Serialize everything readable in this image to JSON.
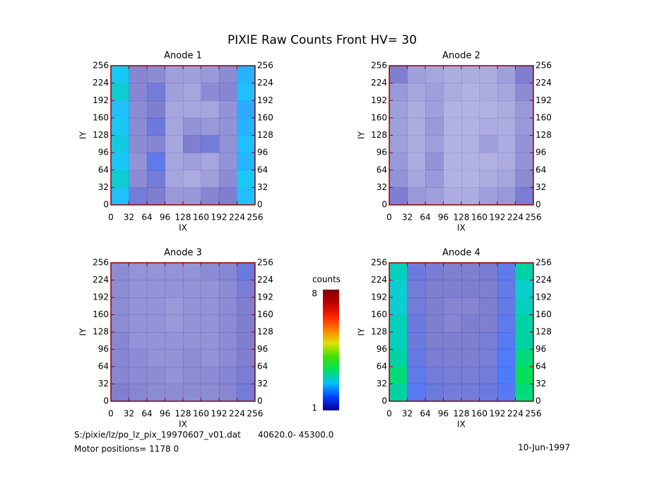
{
  "title": "PIXIE Raw Counts Front HV= 30",
  "footer": {
    "file": "S:/pixie/lz/po_lz_pix_19970607_v01.dat",
    "range": "40620.0- 45300.0",
    "motor": "Motor positions= 1178 0",
    "date": "10-Jun-1997"
  },
  "colorbar": {
    "label": "counts",
    "lim": [
      1,
      8
    ],
    "ticks": [
      1,
      8
    ],
    "colors": [
      "#0000a0",
      "#0040ff",
      "#00c0ff",
      "#00e060",
      "#40e000",
      "#e0e000",
      "#ff8000",
      "#ff2000",
      "#c00000",
      "#800000"
    ]
  },
  "frame_color": "#8b0000",
  "chart_data": [
    {
      "type": "heatmap",
      "title": "Anode 1",
      "xlabel": "IX",
      "ylabel": "IY",
      "xlim": [
        0,
        256
      ],
      "ylim": [
        0,
        256
      ],
      "xticks": [
        0,
        32,
        64,
        96,
        128,
        160,
        192,
        224,
        256
      ],
      "yticks": [
        0,
        32,
        64,
        96,
        128,
        160,
        192,
        224,
        256
      ],
      "z": [
        [
          2.5,
          1.2,
          1.0,
          0.6,
          0.6,
          0.9,
          1.0,
          2.5
        ],
        [
          2.8,
          0.8,
          1.2,
          0.4,
          0.3,
          0.5,
          0.8,
          2.6
        ],
        [
          2.6,
          0.7,
          1.5,
          0.4,
          0.5,
          0.4,
          0.7,
          2.4
        ],
        [
          2.7,
          0.8,
          0.9,
          0.4,
          1.0,
          1.2,
          0.7,
          2.5
        ],
        [
          2.6,
          0.8,
          1.3,
          0.4,
          0.7,
          0.6,
          0.7,
          2.4
        ],
        [
          2.5,
          0.8,
          1.0,
          0.4,
          0.4,
          0.4,
          0.7,
          2.3
        ],
        [
          2.8,
          0.9,
          1.2,
          0.5,
          0.4,
          0.8,
          0.9,
          2.5
        ],
        [
          2.6,
          0.9,
          0.8,
          0.5,
          0.5,
          0.6,
          0.8,
          2.4
        ]
      ]
    },
    {
      "type": "heatmap",
      "title": "Anode 2",
      "xlabel": "IX",
      "ylabel": "IY",
      "xlim": [
        0,
        256
      ],
      "ylim": [
        0,
        256
      ],
      "xticks": [
        0,
        32,
        64,
        96,
        128,
        160,
        192,
        224,
        256
      ],
      "yticks": [
        0,
        32,
        64,
        96,
        128,
        160,
        192,
        224,
        256
      ],
      "z": [
        [
          1.0,
          0.6,
          0.5,
          0.3,
          0.3,
          0.5,
          0.6,
          1.1
        ],
        [
          0.7,
          0.4,
          0.6,
          0.2,
          0.2,
          0.3,
          0.4,
          0.8
        ],
        [
          0.6,
          0.3,
          0.7,
          0.2,
          0.2,
          0.2,
          0.3,
          0.7
        ],
        [
          0.5,
          0.3,
          0.5,
          0.2,
          0.2,
          0.5,
          0.3,
          0.7
        ],
        [
          0.5,
          0.3,
          0.6,
          0.2,
          0.2,
          0.3,
          0.3,
          0.6
        ],
        [
          0.5,
          0.3,
          0.5,
          0.2,
          0.2,
          0.2,
          0.3,
          0.6
        ],
        [
          0.6,
          0.4,
          0.5,
          0.3,
          0.2,
          0.3,
          0.4,
          0.8
        ],
        [
          1.0,
          0.5,
          0.4,
          0.3,
          0.3,
          0.3,
          0.5,
          1.0
        ]
      ]
    },
    {
      "type": "heatmap",
      "title": "Anode 3",
      "xlabel": "IX",
      "ylabel": "IY",
      "xlim": [
        0,
        256
      ],
      "ylim": [
        0,
        256
      ],
      "xticks": [
        0,
        32,
        64,
        96,
        128,
        160,
        192,
        224,
        256
      ],
      "yticks": [
        0,
        32,
        64,
        96,
        128,
        160,
        192,
        224,
        256
      ],
      "z": [
        [
          1.0,
          0.9,
          0.8,
          0.8,
          0.8,
          0.8,
          0.9,
          1.2
        ],
        [
          0.9,
          0.8,
          0.8,
          0.7,
          0.8,
          0.8,
          0.9,
          1.1
        ],
        [
          0.9,
          0.8,
          0.7,
          0.7,
          0.8,
          0.7,
          0.8,
          1.0
        ],
        [
          0.9,
          0.7,
          0.7,
          0.7,
          0.7,
          0.7,
          0.8,
          1.0
        ],
        [
          0.8,
          0.7,
          0.7,
          0.6,
          0.7,
          0.7,
          0.8,
          1.0
        ],
        [
          0.8,
          0.7,
          0.7,
          0.6,
          0.7,
          0.7,
          0.8,
          1.0
        ],
        [
          0.8,
          0.7,
          0.7,
          0.7,
          0.7,
          0.7,
          0.8,
          1.1
        ],
        [
          0.8,
          0.7,
          0.7,
          0.7,
          0.7,
          0.8,
          0.9,
          1.3
        ]
      ]
    },
    {
      "type": "heatmap",
      "title": "Anode 4",
      "xlabel": "IX",
      "ylabel": "IY",
      "xlim": [
        0,
        256
      ],
      "ylim": [
        0,
        256
      ],
      "xticks": [
        0,
        32,
        64,
        96,
        128,
        160,
        192,
        224,
        256
      ],
      "yticks": [
        0,
        32,
        64,
        96,
        128,
        160,
        192,
        224,
        256
      ],
      "z": [
        [
          3.0,
          1.6,
          1.3,
          1.2,
          1.2,
          1.3,
          1.6,
          3.2
        ],
        [
          3.2,
          1.5,
          1.2,
          1.1,
          1.1,
          1.2,
          1.8,
          3.4
        ],
        [
          3.0,
          1.4,
          1.1,
          1.0,
          1.0,
          1.1,
          1.7,
          3.2
        ],
        [
          2.9,
          1.3,
          1.0,
          1.0,
          1.0,
          1.1,
          1.6,
          3.0
        ],
        [
          2.9,
          1.3,
          1.0,
          0.9,
          1.0,
          1.0,
          1.5,
          3.0
        ],
        [
          2.8,
          1.2,
          1.0,
          0.9,
          0.9,
          1.0,
          1.4,
          2.9
        ],
        [
          2.8,
          1.2,
          1.0,
          1.0,
          1.0,
          1.0,
          1.4,
          2.8
        ],
        [
          2.9,
          1.3,
          1.1,
          1.0,
          1.0,
          1.1,
          1.5,
          3.0
        ]
      ]
    }
  ]
}
